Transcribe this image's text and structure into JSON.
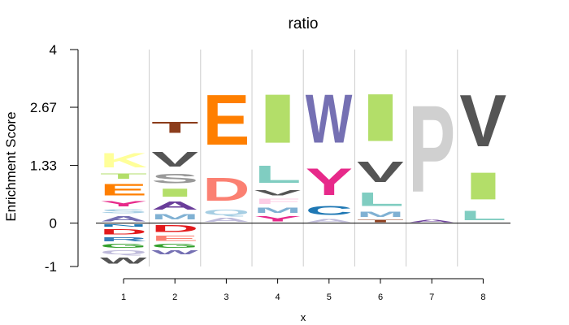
{
  "chart_data": {
    "type": "sequence-logo",
    "title": "ratio",
    "xlabel": "x",
    "ylabel": "Enrichment Score",
    "ylim": [
      -1,
      4
    ],
    "yticks": [
      "4",
      "2.67",
      "1.33",
      "0",
      "-1"
    ],
    "ytick_values": [
      4,
      2.67,
      1.33,
      0,
      -1
    ],
    "xticks": [
      "1",
      "2",
      "3",
      "4",
      "5",
      "6",
      "7",
      "8"
    ],
    "grid": true,
    "positions": [
      {
        "x": "1",
        "letters": [
          {
            "char": "K",
            "low": 1.18,
            "high": 1.7,
            "color": "#ffff99"
          },
          {
            "char": "T",
            "low": 0.98,
            "high": 1.18,
            "color": "#b3de69"
          },
          {
            "char": "E",
            "low": 0.55,
            "high": 0.98,
            "color": "#ff7f00"
          },
          {
            "char": "Y",
            "low": 0.35,
            "high": 0.55,
            "color": "#e7298a"
          },
          {
            "char": "S",
            "low": 0.2,
            "high": 0.35,
            "color": "#a6cee3"
          },
          {
            "char": "A",
            "low": 0.0,
            "high": 0.2,
            "color": "#7570b3"
          },
          {
            "char": "N",
            "low": -0.1,
            "high": 0.0,
            "color": "#1f78b4"
          },
          {
            "char": "D",
            "low": -0.3,
            "high": -0.1,
            "color": "#e31a1c"
          },
          {
            "char": "R",
            "low": -0.45,
            "high": -0.3,
            "color": "#377eb8"
          },
          {
            "char": "G",
            "low": -0.6,
            "high": -0.45,
            "color": "#33a02c"
          },
          {
            "char": "Q",
            "low": -0.75,
            "high": -0.6,
            "color": "#bebada"
          },
          {
            "char": "W",
            "low": -0.98,
            "high": -0.75,
            "color": "#555555"
          }
        ]
      },
      {
        "x": "2",
        "letters": [
          {
            "char": "T",
            "low": 2.0,
            "high": 2.4,
            "color": "#8c3d1c"
          },
          {
            "char": "V",
            "low": 1.2,
            "high": 1.75,
            "color": "#555555"
          },
          {
            "char": "S",
            "low": 0.85,
            "high": 1.2,
            "color": "#999999"
          },
          {
            "char": "I",
            "low": 0.55,
            "high": 0.85,
            "color": "#b3de69"
          },
          {
            "char": "A",
            "low": 0.25,
            "high": 0.55,
            "color": "#6a3d9a"
          },
          {
            "char": "M",
            "low": 0.05,
            "high": 0.25,
            "color": "#80b1d3"
          },
          {
            "char": "D",
            "low": -0.25,
            "high": 0.0,
            "color": "#e31a1c"
          },
          {
            "char": "E",
            "low": -0.45,
            "high": -0.25,
            "color": "#fb8072"
          },
          {
            "char": "G",
            "low": -0.6,
            "high": -0.45,
            "color": "#33a02c"
          },
          {
            "char": "W",
            "low": -0.75,
            "high": -0.6,
            "color": "#7570b3"
          }
        ]
      },
      {
        "x": "3",
        "letters": [
          {
            "char": "E",
            "low": 1.45,
            "high": 3.3,
            "color": "#ff7f00"
          },
          {
            "char": "D",
            "low": 0.35,
            "high": 1.2,
            "color": "#fb8072"
          },
          {
            "char": "Q",
            "low": 0.15,
            "high": 0.35,
            "color": "#a6cee3"
          },
          {
            "char": "A",
            "low": 0.0,
            "high": 0.15,
            "color": "#bebada"
          }
        ]
      },
      {
        "x": "4",
        "letters": [
          {
            "char": "I",
            "low": 1.5,
            "high": 3.3,
            "color": "#b3de69"
          },
          {
            "char": "L",
            "low": 0.8,
            "high": 1.45,
            "color": "#80cdc1"
          },
          {
            "char": "V",
            "low": 0.6,
            "high": 0.8,
            "color": "#555555"
          },
          {
            "char": "F",
            "low": 0.4,
            "high": 0.6,
            "color": "#fccde5"
          },
          {
            "char": "M",
            "low": 0.2,
            "high": 0.4,
            "color": "#80b1d3"
          },
          {
            "char": "Y",
            "low": 0.0,
            "high": 0.2,
            "color": "#e7298a"
          }
        ]
      },
      {
        "x": "5",
        "letters": [
          {
            "char": "W",
            "low": 1.5,
            "high": 3.3,
            "color": "#7570b3"
          },
          {
            "char": "Y",
            "low": 0.45,
            "high": 1.45,
            "color": "#e7298a"
          },
          {
            "char": "C",
            "low": 0.12,
            "high": 0.45,
            "color": "#1f78b4"
          },
          {
            "char": "A",
            "low": 0.0,
            "high": 0.12,
            "color": "#bebada"
          }
        ]
      },
      {
        "x": "6",
        "letters": [
          {
            "char": "I",
            "low": 1.55,
            "high": 3.3,
            "color": "#b3de69"
          },
          {
            "char": "V",
            "low": 0.8,
            "high": 1.55,
            "color": "#555555"
          },
          {
            "char": "L",
            "low": 0.3,
            "high": 0.8,
            "color": "#80cdc1"
          },
          {
            "char": "M",
            "low": 0.1,
            "high": 0.3,
            "color": "#80b1d3"
          },
          {
            "char": "T",
            "low": 0.0,
            "high": 0.1,
            "color": "#8c3d1c"
          }
        ]
      },
      {
        "x": "7",
        "letters": [
          {
            "char": "P",
            "low": 0.1,
            "high": 3.3,
            "color": "#d0d0d0"
          },
          {
            "char": "A",
            "low": 0.0,
            "high": 0.1,
            "color": "#6a3d9a"
          }
        ]
      },
      {
        "x": "8",
        "letters": [
          {
            "char": "V",
            "low": 1.4,
            "high": 3.3,
            "color": "#555555"
          },
          {
            "char": "I",
            "low": 0.35,
            "high": 1.35,
            "color": "#b3de69"
          },
          {
            "char": "L",
            "low": 0.0,
            "high": 0.35,
            "color": "#80cdc1"
          }
        ]
      }
    ]
  }
}
